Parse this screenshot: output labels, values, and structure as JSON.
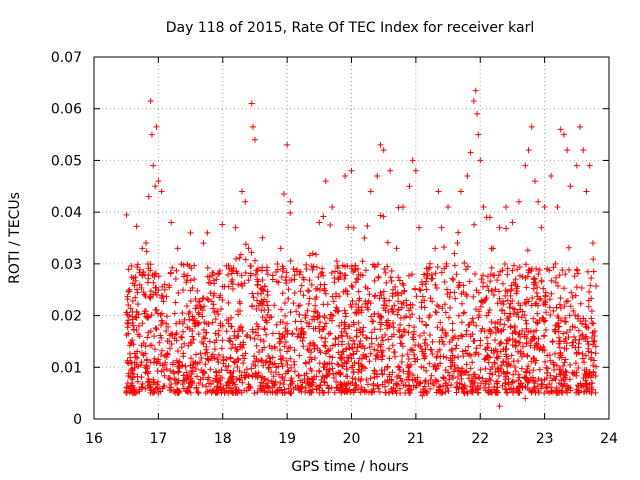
{
  "chart_data": {
    "type": "scatter",
    "title": "Day 118 of 2015, Rate Of TEC Index for receiver karl",
    "xlabel": "GPS time / hours",
    "ylabel": "ROTI / TECUs",
    "xlim": [
      16,
      24
    ],
    "ylim": [
      0,
      0.07
    ],
    "xticks": [
      "16",
      "17",
      "18",
      "19",
      "20",
      "21",
      "22",
      "23",
      "24"
    ],
    "yticks": [
      "0",
      "0.01",
      "0.02",
      "0.03",
      "0.04",
      "0.05",
      "0.06",
      "0.07"
    ],
    "grid": true,
    "marker": "+",
    "color": "#ff0000",
    "x_range_of_data": [
      16.5,
      23.8
    ],
    "typical_band": [
      0.005,
      0.03
    ],
    "series": [
      {
        "name": "ROTI",
        "points": [
          [
            16.55,
            0.025
          ],
          [
            16.6,
            0.0065
          ],
          [
            16.65,
            0.012
          ],
          [
            16.7,
            0.018
          ],
          [
            16.75,
            0.033
          ],
          [
            16.8,
            0.009
          ],
          [
            16.85,
            0.043
          ],
          [
            16.88,
            0.0615
          ],
          [
            16.9,
            0.055
          ],
          [
            16.92,
            0.049
          ],
          [
            16.95,
            0.045
          ],
          [
            16.97,
            0.0565
          ],
          [
            17.0,
            0.046
          ],
          [
            17.05,
            0.044
          ],
          [
            17.1,
            0.025
          ],
          [
            17.2,
            0.038
          ],
          [
            17.3,
            0.033
          ],
          [
            17.4,
            0.028
          ],
          [
            17.5,
            0.036
          ],
          [
            17.6,
            0.022
          ],
          [
            17.7,
            0.034
          ],
          [
            17.8,
            0.015
          ],
          [
            17.9,
            0.027
          ],
          [
            18.0,
            0.018
          ],
          [
            18.1,
            0.029
          ],
          [
            18.2,
            0.037
          ],
          [
            18.3,
            0.044
          ],
          [
            18.35,
            0.042
          ],
          [
            18.4,
            0.033
          ],
          [
            18.45,
            0.061
          ],
          [
            18.47,
            0.0565
          ],
          [
            18.5,
            0.054
          ],
          [
            18.55,
            0.029
          ],
          [
            18.6,
            0.021
          ],
          [
            18.7,
            0.028
          ],
          [
            18.8,
            0.022
          ],
          [
            18.9,
            0.033
          ],
          [
            18.95,
            0.0435
          ],
          [
            19.0,
            0.053
          ],
          [
            19.05,
            0.042
          ],
          [
            19.1,
            0.029
          ],
          [
            19.2,
            0.022
          ],
          [
            19.3,
            0.029
          ],
          [
            19.4,
            0.032
          ],
          [
            19.5,
            0.038
          ],
          [
            19.6,
            0.046
          ],
          [
            19.7,
            0.041
          ],
          [
            19.8,
            0.027
          ],
          [
            19.9,
            0.047
          ],
          [
            20.0,
            0.048
          ],
          [
            20.1,
            0.029
          ],
          [
            20.2,
            0.035
          ],
          [
            20.3,
            0.044
          ],
          [
            20.4,
            0.047
          ],
          [
            20.45,
            0.053
          ],
          [
            20.5,
            0.052
          ],
          [
            20.6,
            0.048
          ],
          [
            20.7,
            0.033
          ],
          [
            20.8,
            0.041
          ],
          [
            20.9,
            0.045
          ],
          [
            20.95,
            0.05
          ],
          [
            21.0,
            0.048
          ],
          [
            21.05,
            0.037
          ],
          [
            21.1,
            0.026
          ],
          [
            21.2,
            0.029
          ],
          [
            21.3,
            0.033
          ],
          [
            21.35,
            0.044
          ],
          [
            21.4,
            0.037
          ],
          [
            21.5,
            0.041
          ],
          [
            21.6,
            0.032
          ],
          [
            21.7,
            0.044
          ],
          [
            21.8,
            0.047
          ],
          [
            21.85,
            0.0515
          ],
          [
            21.9,
            0.0615
          ],
          [
            21.93,
            0.0635
          ],
          [
            21.95,
            0.059
          ],
          [
            21.97,
            0.055
          ],
          [
            22.0,
            0.05
          ],
          [
            22.05,
            0.041
          ],
          [
            22.1,
            0.039
          ],
          [
            22.15,
            0.039
          ],
          [
            22.2,
            0.033
          ],
          [
            22.3,
            0.037
          ],
          [
            22.4,
            0.041
          ],
          [
            22.5,
            0.038
          ],
          [
            22.6,
            0.042
          ],
          [
            22.7,
            0.049
          ],
          [
            22.75,
            0.052
          ],
          [
            22.8,
            0.0565
          ],
          [
            22.85,
            0.046
          ],
          [
            22.9,
            0.042
          ],
          [
            22.95,
            0.037
          ],
          [
            23.0,
            0.041
          ],
          [
            23.1,
            0.047
          ],
          [
            23.2,
            0.041
          ],
          [
            23.25,
            0.056
          ],
          [
            23.3,
            0.055
          ],
          [
            23.35,
            0.052
          ],
          [
            23.4,
            0.045
          ],
          [
            23.5,
            0.049
          ],
          [
            23.55,
            0.0565
          ],
          [
            23.6,
            0.052
          ],
          [
            23.65,
            0.044
          ],
          [
            23.7,
            0.049
          ],
          [
            23.75,
            0.034
          ],
          [
            23.78,
            0.017
          ],
          [
            16.6,
            0.005
          ],
          [
            17.3,
            0.0055
          ],
          [
            18.1,
            0.006
          ],
          [
            18.8,
            0.0065
          ],
          [
            19.5,
            0.006
          ],
          [
            20.2,
            0.0055
          ],
          [
            20.7,
            0.005
          ],
          [
            21.1,
            0.0045
          ],
          [
            21.8,
            0.005
          ],
          [
            22.3,
            0.0025
          ],
          [
            22.7,
            0.004
          ],
          [
            23.4,
            0.006
          ]
        ]
      }
    ]
  }
}
